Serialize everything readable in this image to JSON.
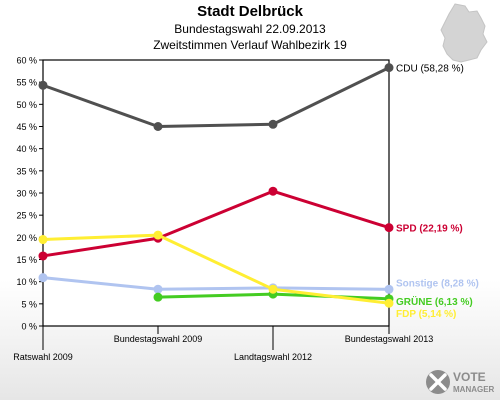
{
  "header": {
    "title": "Stadt Delbrück",
    "subtitle": "Bundestagswahl 22.09.2013",
    "subtitle2": "Zweitstimmen Verlauf Wahlbezirk 19"
  },
  "logo": {
    "line1": "VOTE",
    "line2": "MANAGER",
    "icon": "vote-x-icon"
  },
  "map_icon": "germany-map-icon",
  "chart_data": {
    "type": "line",
    "x": [
      "Ratswahl 2009",
      "Bundestagswahl 2009",
      "Landtagswahl 2012",
      "Bundestagswahl 2013"
    ],
    "ylim": [
      0,
      60
    ],
    "yticks": [
      0,
      5,
      10,
      15,
      20,
      25,
      30,
      35,
      40,
      45,
      50,
      55,
      60
    ],
    "ytick_labels": [
      "0 %",
      "5 %",
      "10 %",
      "15 %",
      "20 %",
      "25 %",
      "30 %",
      "35 %",
      "40 %",
      "45 %",
      "50 %",
      "55 %",
      "60 %"
    ],
    "grid": false,
    "series": [
      {
        "name": "CDU",
        "label": "CDU (58,28 %)",
        "color": "#505050",
        "values": [
          54.3,
          45.0,
          45.5,
          58.28
        ]
      },
      {
        "name": "SPD",
        "label": "SPD (22,19 %)",
        "color": "#cc0033",
        "values": [
          15.8,
          19.8,
          30.4,
          22.19
        ]
      },
      {
        "name": "Sonstige",
        "label": "Sonstige (8,28 %)",
        "color": "#b0c4f0",
        "values": [
          10.9,
          8.3,
          8.6,
          8.28
        ]
      },
      {
        "name": "GRÜNE",
        "label": "GRÜNE (6,13 %)",
        "color": "#44cc22",
        "values": [
          null,
          6.5,
          7.2,
          6.13
        ]
      },
      {
        "name": "FDP",
        "label": "FDP (5,14 %)",
        "color": "#ffee33",
        "values": [
          19.5,
          20.5,
          8.3,
          5.14
        ]
      }
    ]
  }
}
